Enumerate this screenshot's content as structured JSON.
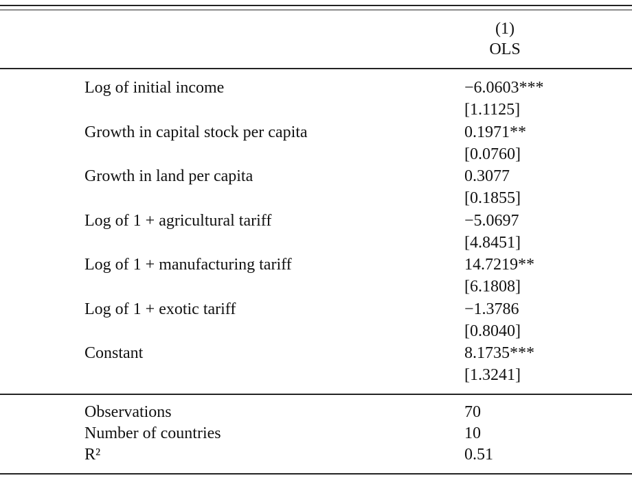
{
  "table": {
    "header": {
      "column_number": "(1)",
      "column_method": "OLS"
    },
    "rows": [
      {
        "label": "Log of initial income",
        "coef": "−6.0603***",
        "se": "[1.1125]"
      },
      {
        "label": "Growth in capital stock per capita",
        "coef": "0.1971**",
        "se": "[0.0760]"
      },
      {
        "label": "Growth in land per capita",
        "coef": "0.3077",
        "se": "[0.1855]"
      },
      {
        "label": "Log of 1 + agricultural tariff",
        "coef": "−5.0697",
        "se": "[4.8451]"
      },
      {
        "label": "Log of 1 + manufacturing tariff",
        "coef": "14.7219**",
        "se": "[6.1808]"
      },
      {
        "label": "Log of 1 + exotic tariff",
        "coef": "−1.3786",
        "se": "[0.8040]"
      },
      {
        "label": "Constant",
        "coef": "8.1735***",
        "se": "[1.3241]"
      }
    ],
    "stats": [
      {
        "label": "Observations",
        "value": "70"
      },
      {
        "label": "Number of countries",
        "value": "10"
      },
      {
        "label": "R²",
        "value": "0.51"
      }
    ]
  }
}
